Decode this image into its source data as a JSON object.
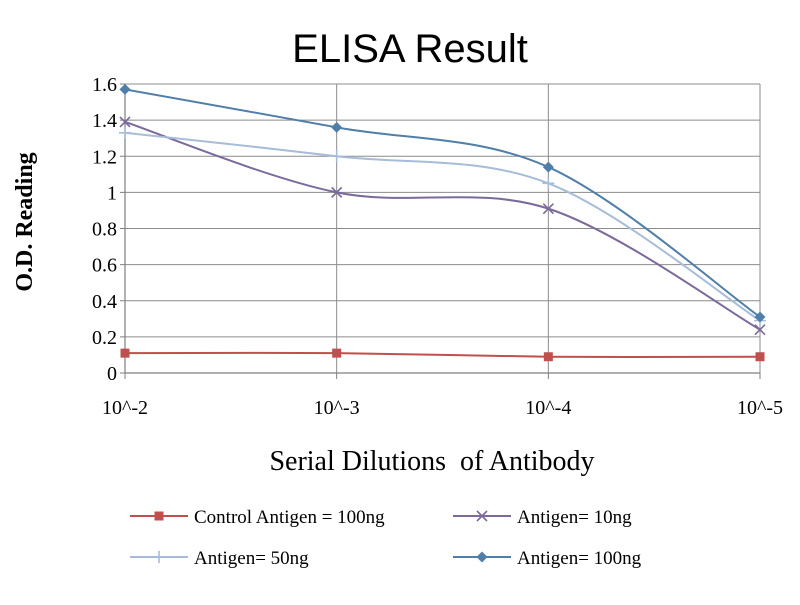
{
  "chart_data": {
    "type": "line",
    "title": "ELISA Result",
    "xlabel": "Serial Dilutions  of Antibody",
    "ylabel": "O.D. Reading",
    "categories": [
      "10^-2",
      "10^-3",
      "10^-4",
      "10^-5"
    ],
    "ylim": [
      0,
      1.6
    ],
    "yticks": [
      "0",
      "0.2",
      "0.4",
      "0.6",
      "0.8",
      "1",
      "1.2",
      "1.4",
      "1.6"
    ],
    "grid": true,
    "legend_position": "bottom",
    "series": [
      {
        "name": "Control Antigen = 100ng",
        "values": [
          0.11,
          0.11,
          0.09,
          0.09
        ],
        "color": "#c0504d",
        "marker": "square"
      },
      {
        "name": "Antigen= 10ng",
        "values": [
          1.39,
          1.0,
          0.91,
          0.24
        ],
        "color": "#7b6a9a",
        "marker": "x"
      },
      {
        "name": "Antigen= 50ng",
        "values": [
          1.33,
          1.2,
          1.05,
          0.29
        ],
        "color": "#a7bcd9",
        "marker": "plus"
      },
      {
        "name": "Antigen= 100ng",
        "values": [
          1.57,
          1.36,
          1.14,
          0.31
        ],
        "color": "#4f7fa8",
        "marker": "diamond"
      }
    ]
  }
}
